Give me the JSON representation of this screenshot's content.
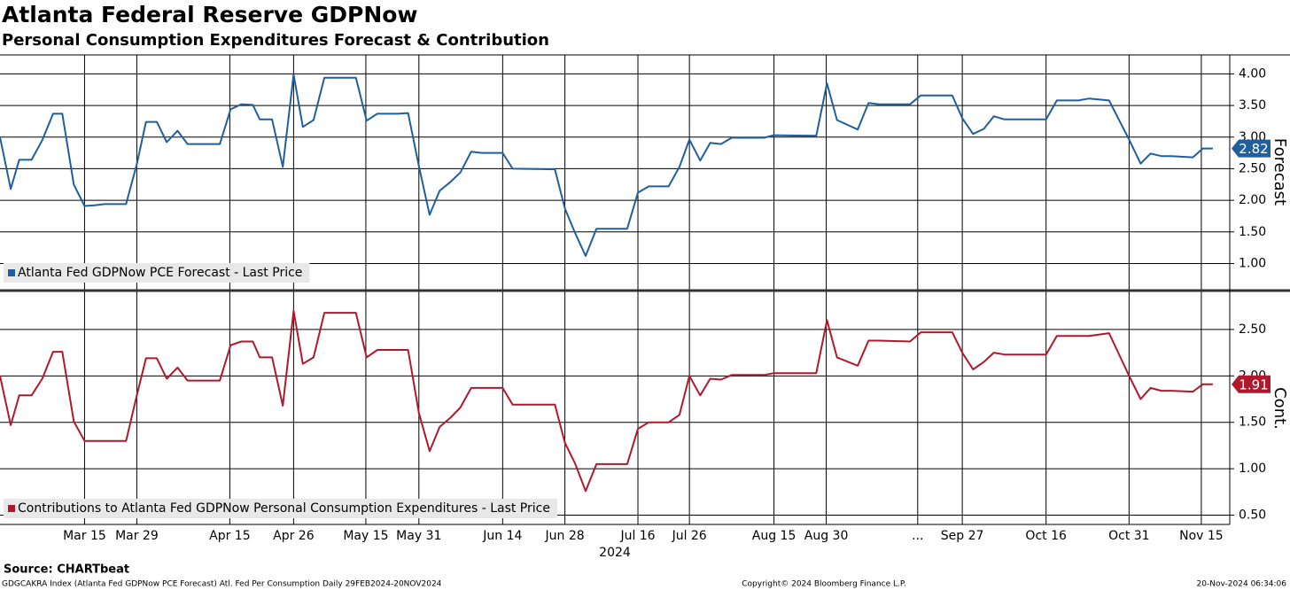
{
  "chart_data": [
    {
      "type": "line",
      "title": "Atlanta Federal Reserve GDPNow",
      "subtitle": "Personal Consumption Expenditures Forecast & Contribution",
      "y_label": "Forecast",
      "xlim": [
        0,
        160
      ],
      "ylim": [
        0.6,
        4.3
      ],
      "yticks": [
        {
          "value": 1,
          "label": "1.00"
        },
        {
          "value": 1.5,
          "label": "1.50"
        },
        {
          "value": 2,
          "label": "2.00"
        },
        {
          "value": 2.5,
          "label": "2.50"
        },
        {
          "value": 3,
          "label": "3.00"
        },
        {
          "value": 3.5,
          "label": "3.50"
        },
        {
          "value": 4,
          "label": "4.00"
        }
      ],
      "x": [
        0,
        1.4,
        2.5,
        4.1,
        5.5,
        6.9,
        8.1,
        9.6,
        11.0,
        12.3,
        13.6,
        16.4,
        17.8,
        19.0,
        20.4,
        21.7,
        23.1,
        24.4,
        28.6,
        30.0,
        31.4,
        32.9,
        33.8,
        35.4,
        36.8,
        38.2,
        39.4,
        40.8,
        42.2,
        46.3,
        47.7,
        49.1,
        51.8,
        53.1,
        54.5,
        55.9,
        57.2,
        58.6,
        59.9,
        61.3,
        62.7,
        65.4,
        66.7,
        72.2,
        73.5,
        74.8,
        76.2,
        77.6,
        81.6,
        83.0,
        84.4,
        87.0,
        88.4,
        89.7,
        91.1,
        92.4,
        93.8,
        95.2,
        99.4,
        100.7,
        106.2,
        107.6,
        108.9,
        111.6,
        113.0,
        114.4,
        118.4,
        119.8,
        123.9,
        125.2,
        126.6,
        128.0,
        129.3,
        130.7,
        136.1,
        137.5,
        140.3,
        141.7,
        144.3,
        146.9,
        148.4,
        149.7,
        151.1,
        152.4,
        155.2,
        156.5,
        157.8
      ],
      "series": [
        {
          "name": "Atlanta Fed GDPNow PCE Forecast - Last Price",
          "color": "#1f5f9e",
          "last_label": "2.82",
          "values": [
            3.0,
            2.18,
            2.64,
            2.64,
            2.95,
            3.37,
            3.37,
            2.25,
            1.91,
            1.92,
            1.94,
            1.94,
            2.57,
            3.24,
            3.24,
            2.92,
            3.1,
            2.89,
            2.89,
            3.44,
            3.52,
            3.51,
            3.28,
            3.28,
            2.53,
            3.99,
            3.16,
            3.27,
            3.94,
            3.94,
            3.26,
            3.37,
            3.37,
            3.38,
            2.54,
            1.77,
            2.15,
            2.29,
            2.44,
            2.77,
            2.75,
            2.75,
            2.5,
            2.49,
            1.87,
            1.49,
            1.12,
            1.55,
            1.55,
            2.12,
            2.22,
            2.22,
            2.53,
            2.96,
            2.63,
            2.91,
            2.89,
            2.99,
            2.99,
            3.03,
            3.02,
            3.85,
            3.27,
            3.12,
            3.54,
            3.52,
            3.52,
            3.66,
            3.66,
            3.3,
            3.05,
            3.13,
            3.33,
            3.28,
            3.28,
            3.58,
            3.58,
            3.61,
            3.58,
            2.96,
            2.58,
            2.74,
            2.7,
            2.7,
            2.68,
            2.82,
            2.82
          ]
        }
      ]
    },
    {
      "type": "line",
      "y_label": "Cont.",
      "x_label": "2024",
      "xlim": [
        0,
        160
      ],
      "ylim": [
        0.4,
        2.9
      ],
      "yticks": [
        {
          "value": 0.5,
          "label": "0.50"
        },
        {
          "value": 1,
          "label": "1.00"
        },
        {
          "value": 1.5,
          "label": "1.50"
        },
        {
          "value": 2,
          "label": "2.00"
        },
        {
          "value": 2.5,
          "label": "2.50"
        }
      ],
      "xticks": [
        {
          "value": 11.0,
          "label": "Mar 15"
        },
        {
          "value": 17.8,
          "label": "Mar 29"
        },
        {
          "value": 29.9,
          "label": "Apr 15"
        },
        {
          "value": 38.2,
          "label": "Apr 26"
        },
        {
          "value": 47.6,
          "label": "May 15"
        },
        {
          "value": 54.5,
          "label": "May 31"
        },
        {
          "value": 65.4,
          "label": "Jun 14"
        },
        {
          "value": 73.5,
          "label": "Jun 28"
        },
        {
          "value": 83.0,
          "label": "Jul 16"
        },
        {
          "value": 89.7,
          "label": "Jul 26"
        },
        {
          "value": 100.7,
          "label": "Aug 15"
        },
        {
          "value": 107.5,
          "label": "Aug 30"
        },
        {
          "value": 119.4,
          "label": "..."
        },
        {
          "value": 125.2,
          "label": "Sep 27"
        },
        {
          "value": 136.1,
          "label": "Oct 16"
        },
        {
          "value": 146.9,
          "label": "Oct 31"
        },
        {
          "value": 156.3,
          "label": "Nov 15"
        }
      ],
      "x": [
        0,
        1.4,
        2.5,
        4.1,
        5.5,
        6.9,
        8.1,
        9.6,
        11.0,
        12.3,
        13.6,
        16.4,
        17.8,
        19.0,
        20.4,
        21.7,
        23.1,
        24.4,
        28.6,
        30.0,
        31.4,
        32.9,
        33.8,
        35.4,
        36.8,
        38.2,
        39.4,
        40.8,
        42.2,
        46.3,
        47.7,
        49.1,
        51.8,
        53.1,
        54.5,
        55.9,
        57.2,
        58.6,
        59.9,
        61.3,
        62.7,
        65.4,
        66.7,
        72.2,
        73.5,
        74.8,
        76.2,
        77.6,
        81.6,
        83.0,
        84.4,
        87.0,
        88.4,
        89.7,
        91.1,
        92.4,
        93.8,
        95.2,
        99.4,
        100.7,
        106.2,
        107.6,
        108.9,
        111.6,
        113.0,
        114.4,
        118.4,
        119.8,
        123.9,
        125.2,
        126.6,
        128.0,
        129.3,
        130.7,
        136.1,
        137.5,
        140.3,
        141.7,
        144.3,
        146.9,
        148.4,
        149.7,
        151.1,
        152.4,
        155.2,
        156.5,
        157.8
      ],
      "series": [
        {
          "name": "Contributions to Atlanta Fed GDPNow Personal Consumption Expenditures - Last Price",
          "color": "#b0192c",
          "last_label": "1.91",
          "values": [
            2.0,
            1.47,
            1.79,
            1.79,
            1.97,
            2.26,
            2.26,
            1.51,
            1.3,
            1.3,
            1.3,
            1.3,
            1.79,
            2.19,
            2.19,
            1.97,
            2.09,
            1.95,
            1.95,
            2.33,
            2.37,
            2.37,
            2.2,
            2.2,
            1.68,
            2.7,
            2.13,
            2.2,
            2.68,
            2.68,
            2.2,
            2.28,
            2.28,
            2.28,
            1.6,
            1.19,
            1.45,
            1.55,
            1.66,
            1.87,
            1.87,
            1.87,
            1.69,
            1.69,
            1.28,
            1.06,
            0.76,
            1.05,
            1.05,
            1.43,
            1.5,
            1.5,
            1.58,
            2.0,
            1.79,
            1.97,
            1.96,
            2.01,
            2.01,
            2.03,
            2.03,
            2.6,
            2.2,
            2.11,
            2.38,
            2.38,
            2.37,
            2.47,
            2.47,
            2.25,
            2.07,
            2.15,
            2.25,
            2.23,
            2.23,
            2.43,
            2.43,
            2.43,
            2.46,
            2.0,
            1.75,
            1.87,
            1.84,
            1.84,
            1.83,
            1.91,
            1.91
          ]
        }
      ]
    }
  ],
  "footer": {
    "source": "Source: CHARTbeat",
    "description": "GDGCAKRA Index (Atlanta Fed GDPNow PCE Forecast) Atl. Fed Per Consumption  Daily 29FEB2024-20NOV2024",
    "copyright": "Copyright© 2024 Bloomberg Finance L.P.",
    "timestamp": "20-Nov-2024 06:34:06"
  }
}
